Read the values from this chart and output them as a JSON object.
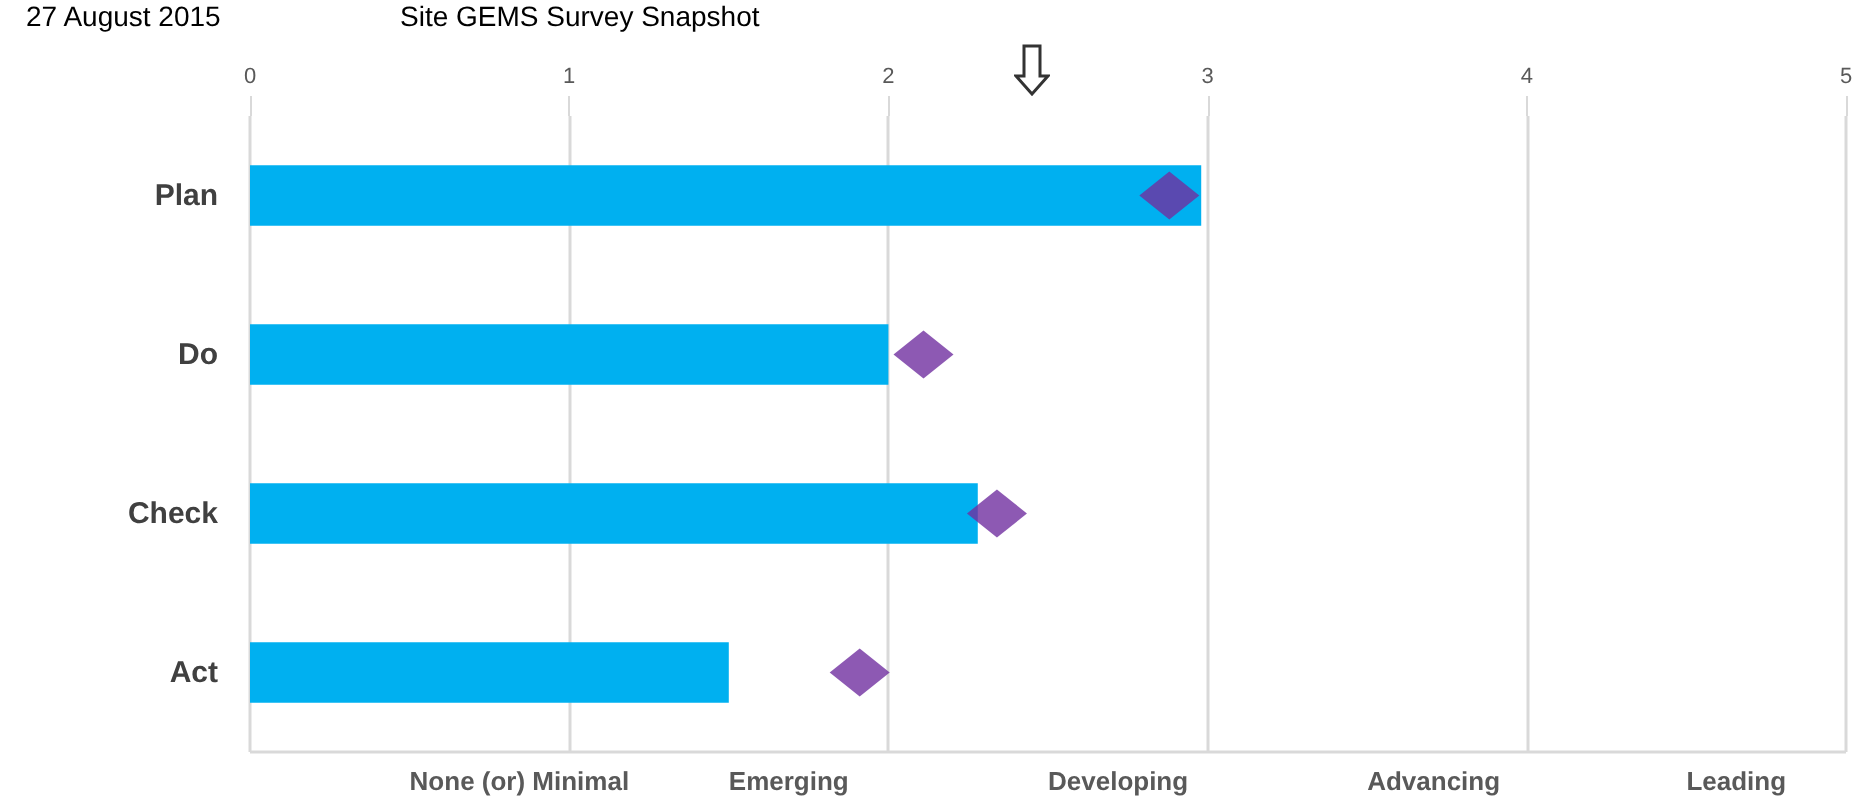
{
  "chart_data": {
    "type": "bar",
    "orientation": "horizontal",
    "title": "27 August 2015",
    "subtitle": "Site GEMS Survey Snapshot",
    "categories": [
      "Plan",
      "Do",
      "Check",
      "Act"
    ],
    "series": [
      {
        "color": "#00b0f0",
        "values": [
          2.98,
          2.0,
          2.28,
          1.5
        ]
      },
      {
        "type": "scatter",
        "color": "#7030a0",
        "x": [
          "Plan",
          "Do",
          "Check",
          "Act"
        ],
        "values": [
          2.88,
          2.11,
          2.34,
          1.91
        ],
        "marker": "diamond"
      }
    ],
    "xlim": [
      0,
      5
    ],
    "xticks": [
      0,
      1,
      2,
      3,
      4,
      5
    ],
    "annotations": [
      "None (or) Minimal",
      "Emerging",
      "Developing",
      "Advancing",
      "Leading"
    ],
    "grid": "x"
  }
}
